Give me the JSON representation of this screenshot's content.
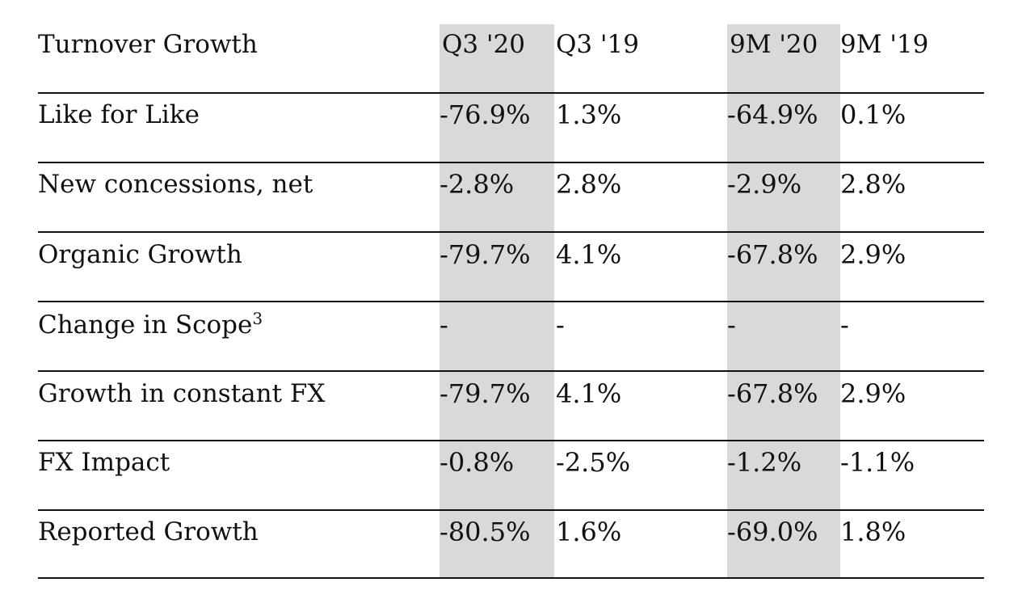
{
  "table": {
    "header": {
      "title": "Turnover Growth",
      "columns": [
        "Q3 '20",
        "Q3 '19",
        "9M '20",
        "9M '19"
      ]
    },
    "rows": [
      {
        "label": "Like for Like",
        "values": [
          "-76.9%",
          "1.3%",
          "-64.9%",
          "0.1%"
        ]
      },
      {
        "label": "New concessions, net",
        "values": [
          "-2.8%",
          "2.8%",
          "-2.9%",
          "2.8%"
        ]
      },
      {
        "label": "Organic Growth",
        "values": [
          "-79.7%",
          "4.1%",
          "-67.8%",
          "2.9%"
        ]
      },
      {
        "label": "Change in Scope",
        "footnote": "3",
        "values": [
          "-",
          "-",
          "-",
          "-"
        ]
      },
      {
        "label": "Growth in constant FX",
        "values": [
          "-79.7%",
          "4.1%",
          "-67.8%",
          "2.9%"
        ]
      },
      {
        "label": "FX Impact",
        "values": [
          "-0.8%",
          "-2.5%",
          "-1.2%",
          "-1.1%"
        ]
      },
      {
        "label": "Reported Growth",
        "values": [
          "-80.5%",
          "1.6%",
          "-69.0%",
          "1.8%"
        ]
      }
    ],
    "highlight_color": "#d9d9d9"
  }
}
